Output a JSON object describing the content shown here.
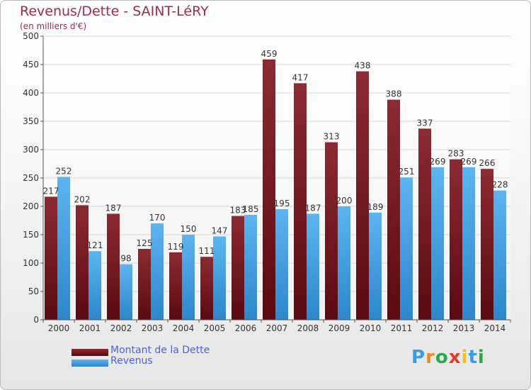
{
  "chart_data": {
    "type": "bar",
    "title": "Revenus/Dette - SAINT-LéRY",
    "subtitle": "(en milliers d'€)",
    "categories": [
      "2000",
      "2001",
      "2002",
      "2003",
      "2004",
      "2005",
      "2006",
      "2007",
      "2008",
      "2009",
      "2010",
      "2011",
      "2012",
      "2013",
      "2014"
    ],
    "series": [
      {
        "name": "Montant de la Dette",
        "color": "#7a1a22",
        "values": [
          217,
          202,
          187,
          125,
          119,
          111,
          183,
          459,
          417,
          313,
          438,
          388,
          337,
          283,
          266
        ]
      },
      {
        "name": "Revenus",
        "color": "#4aa6e8",
        "values": [
          252,
          121,
          98,
          170,
          150,
          147,
          185,
          195,
          187,
          200,
          189,
          251,
          269,
          269,
          228
        ]
      }
    ],
    "ylim": [
      0,
      500
    ],
    "yticks": [
      0,
      50,
      100,
      150,
      200,
      250,
      300,
      350,
      400,
      450,
      500
    ],
    "grid": true,
    "legend_position": "bottom-left"
  },
  "logo": {
    "letters": [
      "P",
      "r",
      "o",
      "x",
      "i",
      "t",
      "i"
    ],
    "colors": [
      "#3b9be0",
      "#f08a1c",
      "#2aa84a",
      "#e03c2c",
      "#f0c01c",
      "#3b9be0",
      "#2aa84a"
    ]
  }
}
